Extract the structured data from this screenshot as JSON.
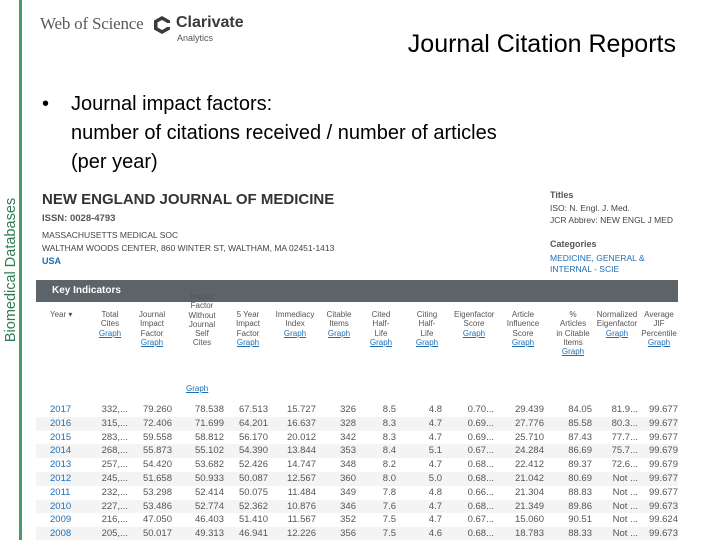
{
  "slide": {
    "side_label": "Biomedical Databases",
    "logo_left": "Web of Science",
    "logo_right": "Clarivate",
    "logo_right_sub": "Analytics",
    "title": "Journal Citation Reports",
    "bullet_char": "•",
    "bullet_lines": [
      "Journal impact factors:",
      "number of citations received / number of articles",
      "(per year)"
    ],
    "accent_color": "#4a9a6a"
  },
  "jcr": {
    "journal_name": "NEW ENGLAND JOURNAL OF MEDICINE",
    "issn": "ISSN: 0028-4793",
    "publisher": "MASSACHUSETTS MEDICAL SOC",
    "address": "WALTHAM WOODS CENTER, 860 WINTER ST, WALTHAM, MA 02451-1413",
    "country": "USA",
    "titles_heading": "Titles",
    "iso_abbrev": "ISO: N. Engl. J. Med.",
    "jcr_abbrev": "JCR Abbrev: NEW ENGL J MED",
    "categories_heading": "Categories",
    "category": "MEDICINE, GENERAL &",
    "category_2": "INTERNAL - SCIE",
    "key_indicators": "Key Indicators",
    "graph_link": "Graph",
    "columns": [
      {
        "label": [
          "Year ▾"
        ],
        "graph": ""
      },
      {
        "label": [
          "Total",
          "Cites"
        ],
        "graph": "Graph"
      },
      {
        "label": [
          "Journal",
          "Impact",
          "Factor"
        ],
        "graph": "Graph"
      },
      {
        "label": [
          "Impact",
          "Factor",
          "Without",
          "Journal",
          "Self",
          "Cites"
        ],
        "graph": ""
      },
      {
        "label": [
          "5 Year",
          "Impact",
          "Factor"
        ],
        "graph": "Graph"
      },
      {
        "label": [
          "Immediacy",
          "Index"
        ],
        "graph": "Graph"
      },
      {
        "label": [
          "Citable",
          "Items"
        ],
        "graph": "Graph"
      },
      {
        "label": [
          "Cited",
          "Half-",
          "Life"
        ],
        "graph": "Graph"
      },
      {
        "label": [
          "Citing",
          "Half-",
          "Life"
        ],
        "graph": "Graph"
      },
      {
        "label": [
          "Eigenfactor",
          "Score"
        ],
        "graph": "Graph"
      },
      {
        "label": [
          "Article",
          "Influence",
          "Score"
        ],
        "graph": "Graph"
      },
      {
        "label": [
          "%",
          "Articles",
          "in Citable",
          "Items"
        ],
        "graph": "Graph"
      },
      {
        "label": [
          "Normalized",
          "Eigenfactor"
        ],
        "graph": "Graph"
      },
      {
        "label": [
          "Average",
          "JIF",
          "Percentile"
        ],
        "graph": "Graph"
      }
    ],
    "rows": [
      [
        "2017",
        "332,...",
        "79.260",
        "78.538",
        "67.513",
        "15.727",
        "326",
        "8.5",
        "4.8",
        "0.70...",
        "29.439",
        "84.05",
        "81.9...",
        "99.677"
      ],
      [
        "2016",
        "315,...",
        "72.406",
        "71.699",
        "64.201",
        "16.637",
        "328",
        "8.3",
        "4.7",
        "0.69...",
        "27.776",
        "85.58",
        "80.3...",
        "99.677"
      ],
      [
        "2015",
        "283,...",
        "59.558",
        "58.812",
        "56.170",
        "20.012",
        "342",
        "8.3",
        "4.7",
        "0.69...",
        "25.710",
        "87.43",
        "77.7...",
        "99.677"
      ],
      [
        "2014",
        "268,...",
        "55.873",
        "55.102",
        "54.390",
        "13.844",
        "353",
        "8.4",
        "5.1",
        "0.67...",
        "24.284",
        "86.69",
        "75.7...",
        "99.679"
      ],
      [
        "2013",
        "257,...",
        "54.420",
        "53.682",
        "52.426",
        "14.747",
        "348",
        "8.2",
        "4.7",
        "0.68...",
        "22.412",
        "89.37",
        "72.6...",
        "99.679"
      ],
      [
        "2012",
        "245,...",
        "51.658",
        "50.933",
        "50.087",
        "12.567",
        "360",
        "8.0",
        "5.0",
        "0.68...",
        "21.042",
        "80.69",
        "Not ...",
        "99.677"
      ],
      [
        "2011",
        "232,...",
        "53.298",
        "52.414",
        "50.075",
        "11.484",
        "349",
        "7.8",
        "4.8",
        "0.66...",
        "21.304",
        "88.83",
        "Not ...",
        "99.677"
      ],
      [
        "2010",
        "227,...",
        "53.486",
        "52.774",
        "52.362",
        "10.876",
        "346",
        "7.6",
        "4.7",
        "0.68...",
        "21.349",
        "89.86",
        "Not ...",
        "99.673"
      ],
      [
        "2009",
        "216,...",
        "47.050",
        "46.403",
        "51.410",
        "11.567",
        "352",
        "7.5",
        "4.7",
        "0.67...",
        "15.060",
        "90.51",
        "Not ...",
        "99.624"
      ],
      [
        "2008",
        "205,...",
        "50.017",
        "49.313",
        "46.941",
        "12.226",
        "356",
        "7.5",
        "4.6",
        "0.68...",
        "18.783",
        "88.33",
        "Not ...",
        "99.673"
      ]
    ]
  }
}
